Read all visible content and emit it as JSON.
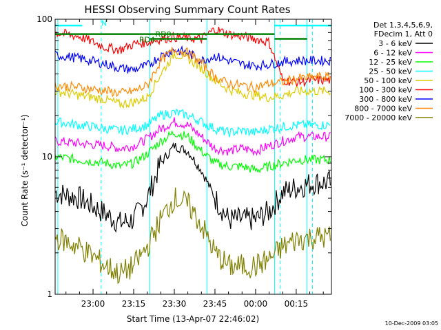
{
  "chart_data": {
    "type": "line",
    "title": "HESSI Observing Summary Count Rates",
    "xlabel": "Start Time (13-Apr-07 22:46:02)",
    "ylabel": "Count Rate (s⁻¹ detector⁻¹)",
    "yscale": "log",
    "ylim": [
      1,
      100
    ],
    "xlim": [
      "22:46",
      "00:28"
    ],
    "xticks": [
      {
        "x": "23:00",
        "label": "23:00"
      },
      {
        "x": "23:15",
        "label": "23:15"
      },
      {
        "x": "23:30",
        "label": "23:30"
      },
      {
        "x": "23:45",
        "label": "23:45"
      },
      {
        "x": "00:00",
        "label": "00:00"
      },
      {
        "x": "00:15",
        "label": "00:15"
      }
    ],
    "yticks": [
      {
        "y": 1,
        "label": "1"
      },
      {
        "y": 10,
        "label": "10"
      },
      {
        "y": 100,
        "label": "100"
      }
    ],
    "legend": {
      "position": "right",
      "header": [
        "Det 1,3,4,5,6,9,",
        "FDecim 1, Att 0"
      ]
    },
    "x": [
      "22:46",
      "22:55",
      "23:05",
      "23:10",
      "23:15",
      "23:20",
      "23:25",
      "23:30",
      "23:35",
      "23:40",
      "23:45",
      "23:50",
      "23:55",
      "00:00",
      "00:05",
      "00:10",
      "00:15",
      "00:22"
    ],
    "series": [
      {
        "name": "3 - 6 keV",
        "color": "#000000",
        "values": [
          5.5,
          5.0,
          3.8,
          3.3,
          3.5,
          5.0,
          9.0,
          12.0,
          11.0,
          8.0,
          5.0,
          3.5,
          3.5,
          3.5,
          4.0,
          5.5,
          6.0,
          6.5
        ]
      },
      {
        "name": "6 - 12 keV",
        "color": "#ff00ff",
        "values": [
          13,
          12.5,
          12,
          11.5,
          12,
          13.5,
          16,
          18,
          17,
          14,
          11.5,
          11,
          11.5,
          11,
          12,
          13,
          14,
          14
        ]
      },
      {
        "name": "12 - 25 keV",
        "color": "#00ff00",
        "values": [
          10,
          9.5,
          9.0,
          8.5,
          9.0,
          10.5,
          13,
          15,
          14,
          11,
          9.0,
          8.5,
          8.5,
          8.0,
          8.5,
          9.0,
          9.5,
          9.5
        ]
      },
      {
        "name": "25 - 50 keV",
        "color": "#00ffff",
        "values": [
          18,
          17,
          16,
          15.5,
          16,
          17,
          20,
          21,
          20,
          18,
          16,
          15,
          15.5,
          15,
          16,
          16.5,
          17,
          17
        ]
      },
      {
        "name": "50 - 100 keV",
        "color": "#ddcc00",
        "values": [
          30,
          28,
          26,
          24,
          25,
          27,
          40,
          56,
          52,
          44,
          36,
          31,
          29,
          28,
          27,
          28,
          30,
          30
        ]
      },
      {
        "name": "100 - 300 keV",
        "color": "#ff0000",
        "values": [
          80,
          75,
          62,
          60,
          66,
          68,
          72,
          74,
          73,
          72,
          85,
          78,
          75,
          72,
          68,
          36,
          35,
          36
        ]
      },
      {
        "name": "300 - 800 keV",
        "color": "#0000ff",
        "values": [
          55,
          52,
          47,
          44,
          43,
          46,
          54,
          60,
          57,
          50,
          54,
          50,
          47,
          46,
          47,
          49,
          50,
          50
        ]
      },
      {
        "name": "800 - 7000 keV",
        "color": "#ff8800",
        "values": [
          33,
          32,
          30,
          29,
          30,
          33,
          50,
          60,
          57,
          48,
          38,
          34,
          33,
          32,
          34,
          35,
          37,
          38
        ]
      },
      {
        "name": "7000 - 20000 keV",
        "color": "#808000",
        "values": [
          2.6,
          2.2,
          1.6,
          1.4,
          1.6,
          2.2,
          3.5,
          5.0,
          4.5,
          3.2,
          2.0,
          1.6,
          1.6,
          1.6,
          1.8,
          2.2,
          2.5,
          2.6
        ]
      }
    ],
    "attenuator_lines": [
      {
        "label": "N",
        "color": "#00ffff",
        "level": 90
      },
      {
        "label": "RD0",
        "color": "#008000",
        "level": 78
      },
      {
        "label": "RD4",
        "color": "#008000",
        "level": 72
      }
    ],
    "vertical_markers": [
      {
        "x": "22:47",
        "style": "solid",
        "color": "#00ffff"
      },
      {
        "x": "23:03",
        "style": "dashed",
        "color": "#00ffff"
      },
      {
        "x": "23:21",
        "style": "solid",
        "color": "#00ffff"
      },
      {
        "x": "23:42",
        "style": "solid",
        "color": "#00ffff"
      },
      {
        "x": "00:07",
        "style": "solid",
        "color": "#00ffff"
      },
      {
        "x": "00:09",
        "style": "dashed",
        "color": "#00ffff"
      },
      {
        "x": "00:19",
        "style": "solid",
        "color": "#00ffff"
      },
      {
        "x": "00:21",
        "style": "dashed",
        "color": "#00ffff"
      }
    ]
  },
  "footer": {
    "timestamp": "10-Dec-2009 03:05"
  }
}
